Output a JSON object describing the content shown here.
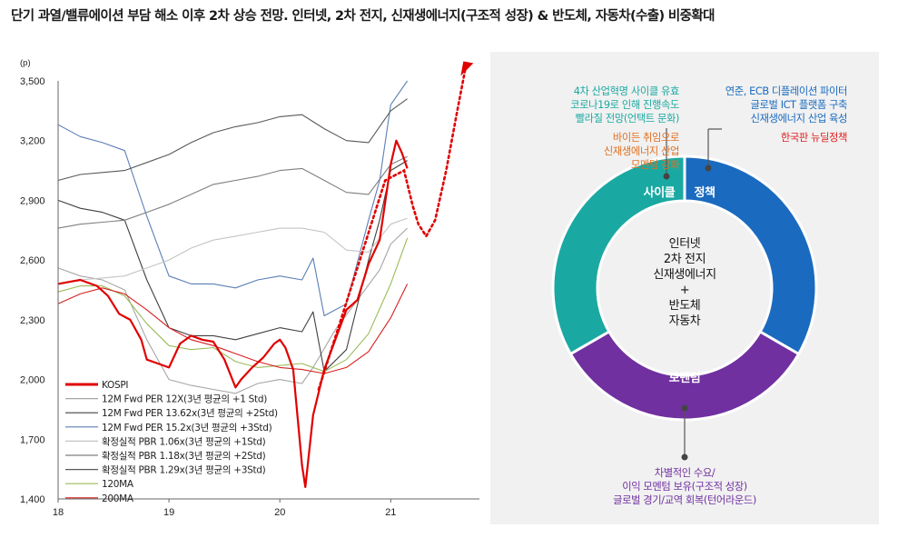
{
  "title": "단기 과열/밸류에이션 부담 해소 이후 2차 상승 전망. 인터넷, 2차 전지, 신재생에너지(구조적 성장) & 반도체, 자동차(수출) 비중확대",
  "chart_data": {
    "type": "line",
    "unit": "(p)",
    "ylim": [
      1400,
      3500
    ],
    "yticks": [
      "3,500",
      "3,200",
      "2,900",
      "2,600",
      "2,300",
      "2,000",
      "1,700",
      "1,400"
    ],
    "xticks": [
      "18",
      "19",
      "20",
      "21"
    ],
    "xlim": [
      2018.0,
      2021.8
    ],
    "legend": [
      {
        "label": "KOSPI",
        "color": "#e00000",
        "width": 3
      },
      {
        "label": "12M Fwd PER 12X(3년 평균의 +1 Std)",
        "color": "#a6a6a6",
        "width": 1.2
      },
      {
        "label": "12M Fwd PER 13.62x(3년 평균의 +2Std)",
        "color": "#404040",
        "width": 1.2
      },
      {
        "label": "12M Fwd PER 15.2x(3년 평균의 +3Std)",
        "color": "#5b7fb5",
        "width": 1.2
      },
      {
        "label": "확정실적 PBR 1.06x(3년 평균의 +1Std)",
        "color": "#c4c4c4",
        "width": 1.2
      },
      {
        "label": "확정실적 PBR 1.18x(3년 평균의 +2Std)",
        "color": "#7f7f7f",
        "width": 1.2
      },
      {
        "label": "확정실적 PBR 1.29x(3년 평균의 +3Std)",
        "color": "#595959",
        "width": 1.2
      },
      {
        "label": "120MA",
        "color": "#9bbb59",
        "width": 1.2
      },
      {
        "label": "200MA",
        "color": "#d62020",
        "width": 1.2
      }
    ],
    "series": [
      {
        "name": "KOSPI",
        "color": "#e00000",
        "width": 2.2,
        "x": [
          2018.0,
          2018.1,
          2018.2,
          2018.35,
          2018.45,
          2018.55,
          2018.65,
          2018.75,
          2018.8,
          2018.9,
          2019.0,
          2019.1,
          2019.2,
          2019.3,
          2019.4,
          2019.5,
          2019.6,
          2019.65,
          2019.75,
          2019.85,
          2019.95,
          2020.0,
          2020.05,
          2020.12,
          2020.2,
          2020.23,
          2020.3,
          2020.4,
          2020.5,
          2020.6,
          2020.7,
          2020.8,
          2020.9,
          2021.0,
          2021.05,
          2021.1,
          2021.15
        ],
        "y": [
          2480,
          2490,
          2500,
          2470,
          2420,
          2330,
          2300,
          2200,
          2100,
          2080,
          2060,
          2180,
          2220,
          2200,
          2190,
          2100,
          1960,
          2000,
          2060,
          2110,
          2180,
          2200,
          2160,
          2050,
          1570,
          1460,
          1820,
          2050,
          2200,
          2350,
          2400,
          2580,
          2700,
          3080,
          3200,
          3140,
          3060
        ]
      },
      {
        "name": "12M Fwd PER 12X",
        "color": "#a6a6a6",
        "width": 1.1,
        "x": [
          2018.0,
          2018.2,
          2018.4,
          2018.6,
          2018.8,
          2019.0,
          2019.2,
          2019.4,
          2019.6,
          2019.8,
          2020.0,
          2020.2,
          2020.3,
          2020.5,
          2020.7,
          2020.9,
          2021.0,
          2021.15
        ],
        "y": [
          2560,
          2520,
          2500,
          2450,
          2200,
          2000,
          1970,
          1950,
          1930,
          1980,
          2000,
          1980,
          2060,
          2250,
          2400,
          2550,
          2680,
          2760
        ]
      },
      {
        "name": "12M Fwd PER 13.62x",
        "color": "#404040",
        "width": 1.1,
        "x": [
          2018.0,
          2018.2,
          2018.4,
          2018.6,
          2018.8,
          2019.0,
          2019.2,
          2019.4,
          2019.6,
          2019.8,
          2020.0,
          2020.2,
          2020.3,
          2020.4,
          2020.6,
          2020.8,
          2020.9,
          2021.0,
          2021.15
        ],
        "y": [
          2900,
          2860,
          2840,
          2800,
          2500,
          2260,
          2220,
          2220,
          2200,
          2230,
          2260,
          2240,
          2340,
          2040,
          2150,
          2600,
          2800,
          3050,
          3100
        ]
      },
      {
        "name": "12M Fwd PER 15.2x",
        "color": "#5b7fb5",
        "width": 1.1,
        "x": [
          2018.0,
          2018.2,
          2018.4,
          2018.6,
          2018.8,
          2019.0,
          2019.2,
          2019.4,
          2019.6,
          2019.8,
          2020.0,
          2020.2,
          2020.3,
          2020.4,
          2020.6,
          2020.8,
          2020.9,
          2021.0,
          2021.15
        ],
        "y": [
          3280,
          3220,
          3190,
          3150,
          2820,
          2520,
          2480,
          2480,
          2460,
          2500,
          2520,
          2500,
          2610,
          2320,
          2380,
          2800,
          3000,
          3380,
          3500
        ]
      },
      {
        "name": "확정실적 PBR 1.06x",
        "color": "#c4c4c4",
        "width": 1.1,
        "x": [
          2018.0,
          2018.2,
          2018.4,
          2018.6,
          2018.8,
          2019.0,
          2019.2,
          2019.4,
          2019.6,
          2019.8,
          2020.0,
          2020.2,
          2020.4,
          2020.6,
          2020.8,
          2021.0,
          2021.15
        ],
        "y": [
          2480,
          2500,
          2510,
          2520,
          2560,
          2600,
          2660,
          2700,
          2720,
          2740,
          2760,
          2760,
          2740,
          2650,
          2640,
          2780,
          2810
        ]
      },
      {
        "name": "확정실적 PBR 1.18x",
        "color": "#7f7f7f",
        "width": 1.1,
        "x": [
          2018.0,
          2018.2,
          2018.4,
          2018.6,
          2018.8,
          2019.0,
          2019.2,
          2019.4,
          2019.6,
          2019.8,
          2020.0,
          2020.2,
          2020.4,
          2020.6,
          2020.8,
          2021.0,
          2021.15
        ],
        "y": [
          2760,
          2780,
          2790,
          2800,
          2840,
          2880,
          2930,
          2980,
          3000,
          3020,
          3050,
          3060,
          3000,
          2940,
          2930,
          3080,
          3120
        ]
      },
      {
        "name": "확정실적 PBR 1.29x",
        "color": "#595959",
        "width": 1.1,
        "x": [
          2018.0,
          2018.2,
          2018.4,
          2018.6,
          2018.8,
          2019.0,
          2019.2,
          2019.4,
          2019.6,
          2019.8,
          2020.0,
          2020.2,
          2020.4,
          2020.6,
          2020.8,
          2021.0,
          2021.15
        ],
        "y": [
          3000,
          3030,
          3040,
          3050,
          3090,
          3130,
          3190,
          3240,
          3270,
          3290,
          3320,
          3330,
          3260,
          3200,
          3190,
          3350,
          3410
        ]
      },
      {
        "name": "120MA",
        "color": "#9bbb59",
        "width": 1.1,
        "x": [
          2018.0,
          2018.2,
          2018.4,
          2018.6,
          2018.8,
          2019.0,
          2019.2,
          2019.4,
          2019.6,
          2019.8,
          2020.0,
          2020.2,
          2020.4,
          2020.6,
          2020.8,
          2021.0,
          2021.15
        ],
        "y": [
          2440,
          2470,
          2470,
          2420,
          2280,
          2170,
          2150,
          2160,
          2090,
          2060,
          2070,
          2080,
          2040,
          2100,
          2230,
          2480,
          2710
        ]
      },
      {
        "name": "200MA",
        "color": "#d62020",
        "width": 1.1,
        "x": [
          2018.0,
          2018.2,
          2018.4,
          2018.6,
          2018.8,
          2019.0,
          2019.2,
          2019.4,
          2019.6,
          2019.8,
          2020.0,
          2020.2,
          2020.4,
          2020.6,
          2020.8,
          2021.0,
          2021.15
        ],
        "y": [
          2380,
          2430,
          2460,
          2430,
          2350,
          2260,
          2200,
          2170,
          2130,
          2090,
          2060,
          2050,
          2030,
          2060,
          2140,
          2310,
          2480
        ]
      }
    ],
    "forecast": {
      "color": "#e00000",
      "x": [
        2020.35,
        2020.55,
        2020.75,
        2020.95,
        2021.12,
        2021.2,
        2021.25,
        2021.32,
        2021.4,
        2021.5,
        2021.6,
        2021.68
      ],
      "y": [
        1950,
        2300,
        2650,
        3000,
        3050,
        2870,
        2780,
        2720,
        2800,
        3050,
        3350,
        3580
      ]
    }
  },
  "donut": {
    "segments": [
      {
        "name": "사이클",
        "color": "#1aa9a2"
      },
      {
        "name": "정책",
        "color": "#1a6bbf"
      },
      {
        "name": "모멘텀",
        "color": "#7030a0"
      }
    ],
    "center_lines": [
      "인터넷",
      "2차 전지",
      "신재생에너지",
      "+",
      "반도체",
      "자동차"
    ],
    "cycle_callout": {
      "lines_teal": [
        "4차 산업혁명 사이클 유효",
        "코로나19로 인해 진행속도",
        "빨라질 전망(언택트 문화)"
      ],
      "lines_orange": [
        "바이든 취임으로",
        "신재생에너지 산업",
        "모멘텀 강화"
      ]
    },
    "policy_callout": {
      "lines_blue": [
        "연준, ECB 디플레이션 파이터",
        "글로벌 ICT 플랫폼 구축",
        "신재생에너지 산업 육성"
      ],
      "line_red": "한국판 뉴딜정책"
    },
    "momentum_callout": {
      "lines": [
        "차별적인 수요/",
        "이익 모멘텀 보유(구조적 성장)",
        "글로벌 경기/교역 회복(턴어라운드)"
      ]
    },
    "colors": {
      "teal_text": "#1aa9a2",
      "orange_text": "#e07020",
      "blue_text": "#1a6bbf",
      "red_text": "#e02020",
      "purple_text": "#7030a0"
    }
  }
}
